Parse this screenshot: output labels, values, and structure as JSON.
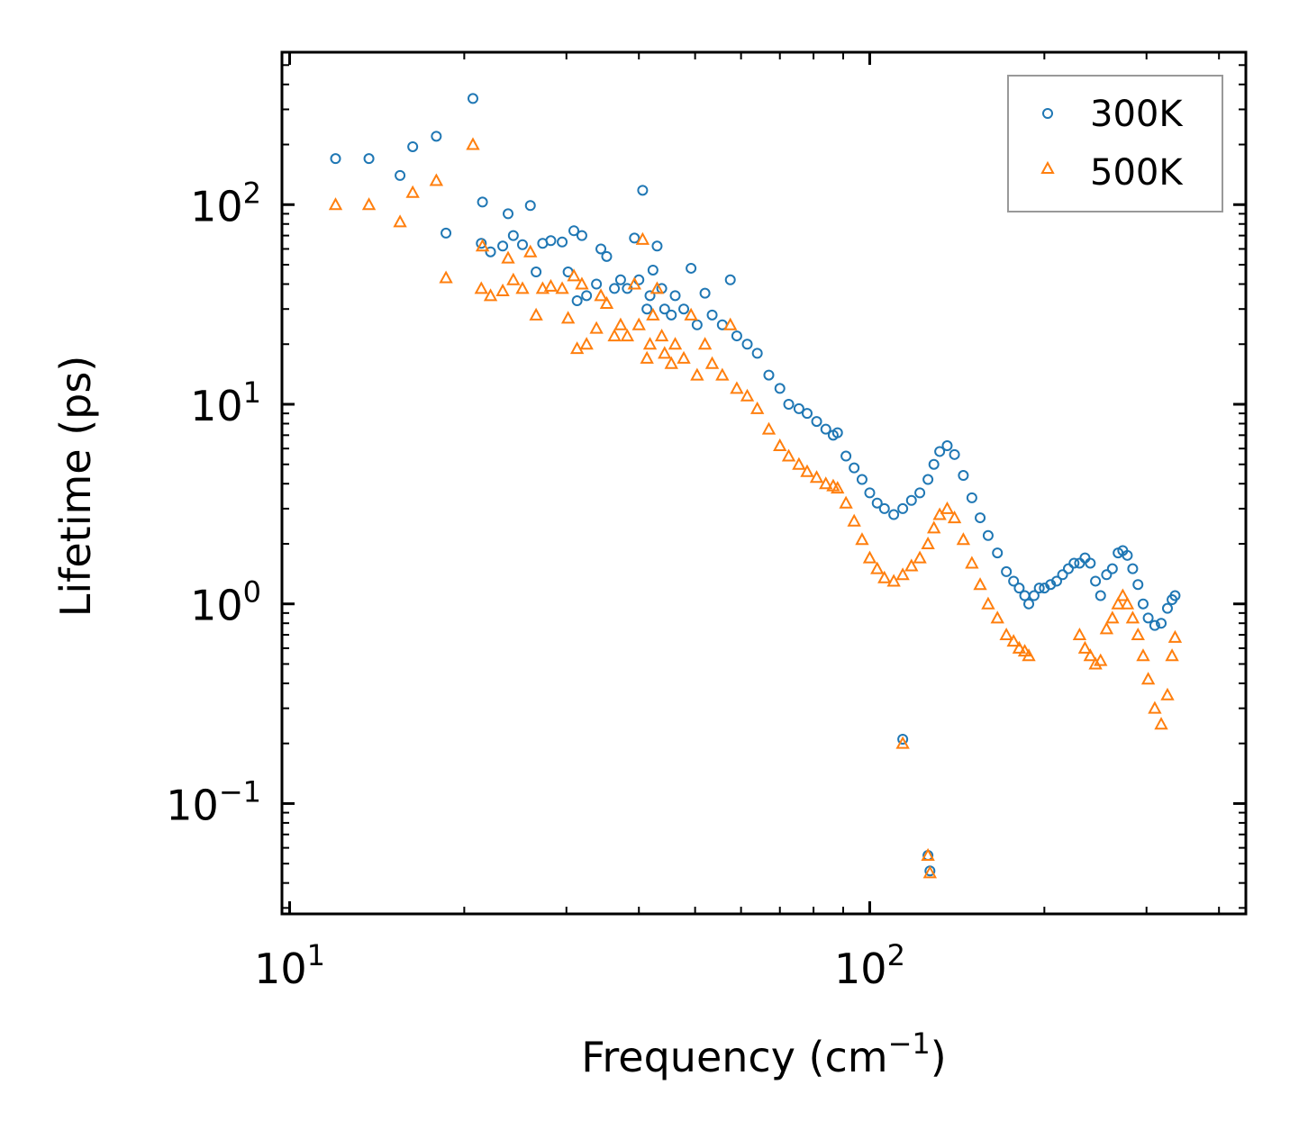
{
  "chart_data": {
    "type": "scatter",
    "title": "",
    "xlabel": "Frequency (cm",
    "xlabel_sup": "−1",
    "xlabel_end": ")",
    "ylabel": "Lifetime (ps)",
    "xscale": "log",
    "yscale": "log",
    "xlim": [
      9.7,
      445
    ],
    "ylim": [
      0.028,
      580
    ],
    "legend_position": "top-right",
    "x_ticks": [
      {
        "value": 10,
        "base": "10",
        "exp": "1"
      },
      {
        "value": 100,
        "base": "10",
        "exp": "2"
      }
    ],
    "y_ticks": [
      {
        "value": 0.1,
        "base": "10",
        "exp": "−1"
      },
      {
        "value": 1,
        "base": "10",
        "exp": "0"
      },
      {
        "value": 10,
        "base": "10",
        "exp": "1"
      },
      {
        "value": 100,
        "base": "10",
        "exp": "2"
      }
    ],
    "series": [
      {
        "name": "300K",
        "color": "#1f77b4",
        "marker": "circle",
        "points": [
          [
            12,
            170
          ],
          [
            13.7,
            170
          ],
          [
            15.5,
            140
          ],
          [
            16.3,
            195
          ],
          [
            17.9,
            220
          ],
          [
            18.6,
            72
          ],
          [
            20.7,
            340
          ],
          [
            21.5,
            103
          ],
          [
            21.4,
            64
          ],
          [
            22.2,
            58
          ],
          [
            23.3,
            62
          ],
          [
            23.8,
            90
          ],
          [
            24.3,
            70
          ],
          [
            25.2,
            63
          ],
          [
            26,
            99
          ],
          [
            26.6,
            46
          ],
          [
            27.3,
            64
          ],
          [
            28.2,
            66
          ],
          [
            29.5,
            65
          ],
          [
            30.2,
            46
          ],
          [
            30.9,
            74
          ],
          [
            31.3,
            33
          ],
          [
            31.9,
            70
          ],
          [
            32.5,
            35
          ],
          [
            33.8,
            40
          ],
          [
            34.4,
            60
          ],
          [
            35.2,
            55
          ],
          [
            36.3,
            38
          ],
          [
            37.2,
            42
          ],
          [
            38.2,
            38
          ],
          [
            39.3,
            68
          ],
          [
            40,
            42
          ],
          [
            40.6,
            118
          ],
          [
            41.3,
            30
          ],
          [
            41.8,
            35
          ],
          [
            42.3,
            47
          ],
          [
            43,
            62
          ],
          [
            43.8,
            38
          ],
          [
            44.3,
            30
          ],
          [
            45.5,
            28
          ],
          [
            46.2,
            35
          ],
          [
            47.8,
            30
          ],
          [
            49.2,
            48
          ],
          [
            50.4,
            25
          ],
          [
            52,
            36
          ],
          [
            53.5,
            28
          ],
          [
            55.7,
            25
          ],
          [
            57.5,
            42
          ],
          [
            59,
            22
          ],
          [
            61.5,
            20
          ],
          [
            64,
            18
          ],
          [
            67,
            14
          ],
          [
            70,
            12
          ],
          [
            72.5,
            10
          ],
          [
            75.5,
            9.5
          ],
          [
            78,
            9
          ],
          [
            81,
            8.2
          ],
          [
            84,
            7.5
          ],
          [
            86.5,
            7
          ],
          [
            88,
            7.2
          ],
          [
            91,
            5.5
          ],
          [
            94,
            4.8
          ],
          [
            97,
            4.2
          ],
          [
            100,
            3.6
          ],
          [
            103,
            3.2
          ],
          [
            106,
            3
          ],
          [
            110,
            2.8
          ],
          [
            114,
            3
          ],
          [
            118,
            3.3
          ],
          [
            122,
            3.6
          ],
          [
            126,
            4.2
          ],
          [
            129,
            5
          ],
          [
            132,
            5.8
          ],
          [
            136,
            6.2
          ],
          [
            140,
            5.6
          ],
          [
            145,
            4.4
          ],
          [
            150,
            3.4
          ],
          [
            155,
            2.7
          ],
          [
            160,
            2.2
          ],
          [
            166,
            1.8
          ],
          [
            172,
            1.45
          ],
          [
            177,
            1.3
          ],
          [
            181,
            1.2
          ],
          [
            185,
            1.1
          ],
          [
            188,
            1
          ],
          [
            192,
            1.1
          ],
          [
            196,
            1.2
          ],
          [
            200,
            1.2
          ],
          [
            205,
            1.25
          ],
          [
            210,
            1.3
          ],
          [
            215,
            1.4
          ],
          [
            220,
            1.5
          ],
          [
            225,
            1.6
          ],
          [
            230,
            1.6
          ],
          [
            235,
            1.7
          ],
          [
            240,
            1.6
          ],
          [
            245,
            1.3
          ],
          [
            250,
            1.1
          ],
          [
            256,
            1.4
          ],
          [
            262,
            1.5
          ],
          [
            268,
            1.8
          ],
          [
            273,
            1.85
          ],
          [
            278,
            1.75
          ],
          [
            284,
            1.5
          ],
          [
            290,
            1.25
          ],
          [
            296,
            1
          ],
          [
            302,
            0.85
          ],
          [
            310,
            0.78
          ],
          [
            318,
            0.8
          ],
          [
            326,
            0.95
          ],
          [
            332,
            1.05
          ],
          [
            336,
            1.1
          ],
          [
            114,
            0.21
          ],
          [
            126,
            0.055
          ],
          [
            127,
            0.046
          ]
        ]
      },
      {
        "name": "500K",
        "color": "#ff7f0e",
        "marker": "triangle",
        "points": [
          [
            12,
            100
          ],
          [
            13.7,
            100
          ],
          [
            15.5,
            82
          ],
          [
            16.3,
            115
          ],
          [
            17.9,
            132
          ],
          [
            18.6,
            43
          ],
          [
            20.7,
            200
          ],
          [
            21.5,
            62
          ],
          [
            21.4,
            38
          ],
          [
            22.2,
            35
          ],
          [
            23.3,
            37
          ],
          [
            23.8,
            54
          ],
          [
            24.3,
            42
          ],
          [
            25.2,
            38
          ],
          [
            26,
            58
          ],
          [
            26.6,
            28
          ],
          [
            27.3,
            38
          ],
          [
            28.2,
            39
          ],
          [
            29.5,
            38
          ],
          [
            30.2,
            27
          ],
          [
            30.9,
            44
          ],
          [
            31.3,
            19
          ],
          [
            31.9,
            40
          ],
          [
            32.5,
            20
          ],
          [
            33.8,
            24
          ],
          [
            34.4,
            35
          ],
          [
            35.2,
            32
          ],
          [
            36.3,
            22
          ],
          [
            37.2,
            25
          ],
          [
            38.2,
            22
          ],
          [
            39.3,
            40
          ],
          [
            40,
            25
          ],
          [
            40.6,
            67
          ],
          [
            41.3,
            17
          ],
          [
            41.8,
            20
          ],
          [
            42.3,
            28
          ],
          [
            43,
            38
          ],
          [
            43.8,
            22
          ],
          [
            44.3,
            18
          ],
          [
            45.5,
            16
          ],
          [
            46.2,
            20
          ],
          [
            47.8,
            17
          ],
          [
            49.2,
            28
          ],
          [
            50.4,
            14
          ],
          [
            52,
            20
          ],
          [
            53.5,
            16
          ],
          [
            55.7,
            14
          ],
          [
            57.5,
            25
          ],
          [
            59,
            12
          ],
          [
            61.5,
            11
          ],
          [
            64,
            9.5
          ],
          [
            67,
            7.5
          ],
          [
            70,
            6.2
          ],
          [
            72.5,
            5.5
          ],
          [
            75.5,
            5
          ],
          [
            78,
            4.6
          ],
          [
            81,
            4.3
          ],
          [
            84,
            4
          ],
          [
            86.5,
            3.9
          ],
          [
            88,
            3.8
          ],
          [
            91,
            3.2
          ],
          [
            94,
            2.6
          ],
          [
            97,
            2.1
          ],
          [
            100,
            1.7
          ],
          [
            103,
            1.5
          ],
          [
            106,
            1.35
          ],
          [
            110,
            1.3
          ],
          [
            114,
            1.4
          ],
          [
            118,
            1.55
          ],
          [
            122,
            1.7
          ],
          [
            126,
            2
          ],
          [
            129,
            2.4
          ],
          [
            132,
            2.8
          ],
          [
            136,
            3
          ],
          [
            140,
            2.7
          ],
          [
            145,
            2.1
          ],
          [
            150,
            1.6
          ],
          [
            155,
            1.25
          ],
          [
            160,
            1
          ],
          [
            166,
            0.85
          ],
          [
            172,
            0.7
          ],
          [
            177,
            0.65
          ],
          [
            181,
            0.6
          ],
          [
            185,
            0.58
          ],
          [
            188,
            0.55
          ],
          [
            230,
            0.7
          ],
          [
            235,
            0.6
          ],
          [
            240,
            0.55
          ],
          [
            245,
            0.5
          ],
          [
            250,
            0.52
          ],
          [
            256,
            0.75
          ],
          [
            262,
            0.85
          ],
          [
            268,
            1
          ],
          [
            273,
            1.1
          ],
          [
            278,
            1
          ],
          [
            284,
            0.85
          ],
          [
            290,
            0.7
          ],
          [
            296,
            0.55
          ],
          [
            302,
            0.42
          ],
          [
            310,
            0.3
          ],
          [
            318,
            0.25
          ],
          [
            326,
            0.35
          ],
          [
            332,
            0.55
          ],
          [
            336,
            0.68
          ],
          [
            114,
            0.2
          ],
          [
            126,
            0.055
          ],
          [
            127,
            0.045
          ]
        ]
      }
    ]
  }
}
